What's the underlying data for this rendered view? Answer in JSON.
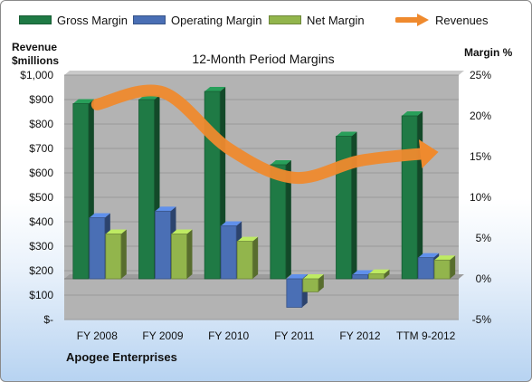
{
  "legend": {
    "gross": "Gross Margin",
    "operating": "Operating Margin",
    "net": "Net Margin",
    "revenues": "Revenues"
  },
  "colors": {
    "gross": "#1f7a45",
    "operating": "#4a6fb5",
    "net": "#92b54c",
    "revenues": "#ef8a2e",
    "plot_bg": "#b3b3b3",
    "floor": "#7f7f7f"
  },
  "axes": {
    "left_title_line1": "Revenue",
    "left_title_line2": "$millions",
    "right_title": "Margin %"
  },
  "company": "Apogee Enterprises",
  "chart_data": {
    "type": "bar",
    "title": "12-Month Period Margins",
    "categories": [
      "FY 2008",
      "FY 2009",
      "FY 2010",
      "FY 2011",
      "FY 2012",
      "TTM 9-2012"
    ],
    "series": [
      {
        "name": "Gross Margin",
        "axis": "right",
        "unit": "%",
        "values": [
          21.5,
          22.0,
          23.0,
          14.0,
          17.5,
          20.0
        ]
      },
      {
        "name": "Operating Margin",
        "axis": "right",
        "unit": "%",
        "values": [
          7.5,
          8.3,
          6.5,
          -3.5,
          0.5,
          2.6
        ]
      },
      {
        "name": "Net Margin",
        "axis": "right",
        "unit": "%",
        "values": [
          5.5,
          5.5,
          4.6,
          -1.6,
          0.6,
          2.3
        ]
      },
      {
        "name": "Revenues",
        "axis": "left",
        "unit": "$millions",
        "type": "line",
        "values": [
          880,
          930,
          700,
          580,
          650,
          680
        ]
      }
    ],
    "left_axis": {
      "min": 0,
      "max": 1000,
      "step": 100,
      "tick_labels": [
        "$-",
        "$100",
        "$200",
        "$300",
        "$400",
        "$500",
        "$600",
        "$700",
        "$800",
        "$900",
        "$1,000"
      ]
    },
    "right_axis": {
      "min": -5,
      "max": 25,
      "step": 5,
      "tick_labels": [
        "-5%",
        "0%",
        "5%",
        "10%",
        "15%",
        "20%",
        "25%"
      ]
    },
    "grid": true,
    "legend_position": "top"
  }
}
